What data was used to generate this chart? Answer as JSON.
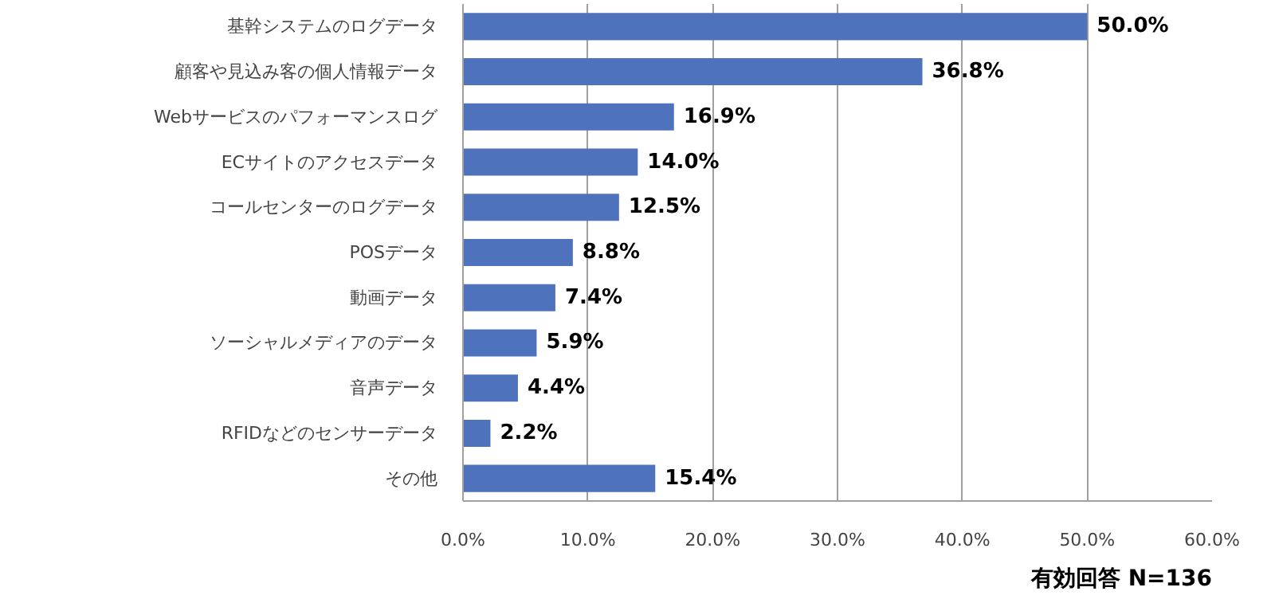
{
  "chart_data": {
    "type": "bar",
    "orientation": "horizontal",
    "categories": [
      "基幹システムのログデータ",
      "顧客や見込み客の個人情報データ",
      "Webサービスのパフォーマンスログ",
      "ECサイトのアクセスデータ",
      "コールセンターのログデータ",
      "POSデータ",
      "動画データ",
      "ソーシャルメディアのデータ",
      "音声データ",
      "RFIDなどのセンサーデータ",
      "その他"
    ],
    "values": [
      50.0,
      36.8,
      16.9,
      14.0,
      12.5,
      8.8,
      7.4,
      5.9,
      4.4,
      2.2,
      15.4
    ],
    "value_labels": [
      "50.0%",
      "36.8%",
      "16.9%",
      "14.0%",
      "12.5%",
      "8.8%",
      "7.4%",
      "5.9%",
      "4.4%",
      "2.2%",
      "15.4%"
    ],
    "color": "#4f72bd",
    "xlim": [
      0,
      60
    ],
    "xticks": [
      {
        "value": 0,
        "label": "0.0%"
      },
      {
        "value": 10,
        "label": "10.0%"
      },
      {
        "value": 20,
        "label": "20.0%"
      },
      {
        "value": 30,
        "label": "30.0%"
      },
      {
        "value": 40,
        "label": "40.0%"
      },
      {
        "value": 50,
        "label": "50.0%"
      },
      {
        "value": 60,
        "label": "60.0%"
      }
    ],
    "grid": "x",
    "annotations": [
      "有効回答 N=136"
    ]
  }
}
